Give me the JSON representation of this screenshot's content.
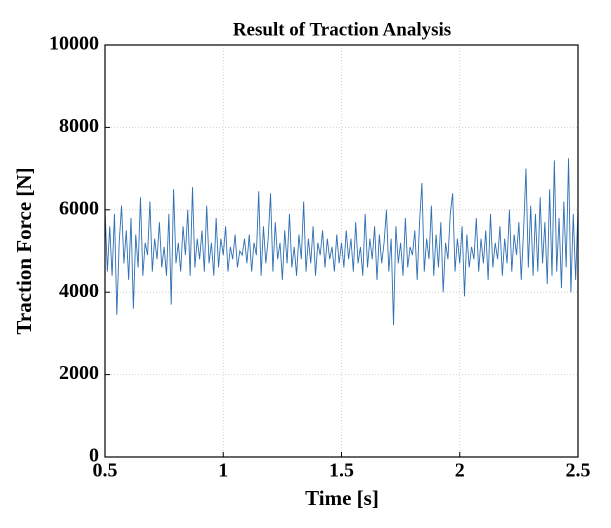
{
  "chart_data": {
    "type": "line",
    "title": "Result of Traction Analysis",
    "x_label": "Time [s]",
    "y_label": "Traction Force [N]",
    "xlim": [
      0.5,
      2.5
    ],
    "xticks": [
      0.5,
      1,
      1.5,
      2,
      2.5
    ],
    "ylim": [
      0,
      10000
    ],
    "yticks": [
      0,
      2000,
      4000,
      6000,
      8000,
      10000
    ],
    "grid": true,
    "x": [
      0.5,
      0.51,
      0.52,
      0.53,
      0.54,
      0.55,
      0.56,
      0.57,
      0.58,
      0.59,
      0.6,
      0.61,
      0.62,
      0.63,
      0.64,
      0.65,
      0.66,
      0.67,
      0.68,
      0.69,
      0.7,
      0.71,
      0.72,
      0.73,
      0.74,
      0.75,
      0.76,
      0.77,
      0.78,
      0.79,
      0.8,
      0.81,
      0.82,
      0.83,
      0.84,
      0.85,
      0.86,
      0.87,
      0.88,
      0.89,
      0.9,
      0.91,
      0.92,
      0.93,
      0.94,
      0.95,
      0.96,
      0.97,
      0.98,
      0.99,
      1,
      1.01,
      1.02,
      1.03,
      1.04,
      1.05,
      1.06,
      1.07,
      1.08,
      1.09,
      1.1,
      1.11,
      1.12,
      1.13,
      1.14,
      1.15,
      1.16,
      1.17,
      1.18,
      1.19,
      1.2,
      1.21,
      1.22,
      1.23,
      1.24,
      1.25,
      1.26,
      1.27,
      1.28,
      1.29,
      1.3,
      1.31,
      1.32,
      1.33,
      1.34,
      1.35,
      1.36,
      1.37,
      1.38,
      1.39,
      1.4,
      1.41,
      1.42,
      1.43,
      1.44,
      1.45,
      1.46,
      1.47,
      1.48,
      1.49,
      1.5,
      1.51,
      1.52,
      1.53,
      1.54,
      1.55,
      1.56,
      1.57,
      1.58,
      1.59,
      1.6,
      1.61,
      1.62,
      1.63,
      1.64,
      1.65,
      1.66,
      1.67,
      1.68,
      1.69,
      1.7,
      1.71,
      1.72,
      1.73,
      1.74,
      1.75,
      1.76,
      1.77,
      1.78,
      1.79,
      1.8,
      1.81,
      1.82,
      1.83,
      1.84,
      1.85,
      1.86,
      1.87,
      1.88,
      1.89,
      1.9,
      1.91,
      1.92,
      1.93,
      1.94,
      1.95,
      1.96,
      1.97,
      1.98,
      1.99,
      2,
      2.01,
      2.02,
      2.03,
      2.04,
      2.05,
      2.06,
      2.07,
      2.08,
      2.09,
      2.1,
      2.11,
      2.12,
      2.13,
      2.14,
      2.15,
      2.16,
      2.17,
      2.18,
      2.19,
      2.2,
      2.21,
      2.22,
      2.23,
      2.24,
      2.25,
      2.26,
      2.27,
      2.28,
      2.29,
      2.3,
      2.31,
      2.32,
      2.33,
      2.34,
      2.35,
      2.36,
      2.37,
      2.38,
      2.39,
      2.4,
      2.41,
      2.42,
      2.43,
      2.44,
      2.45,
      2.46,
      2.47,
      2.48,
      2.49,
      2.5
    ],
    "series": [
      {
        "color": "#2f6fb3",
        "values": [
          6000,
          4500,
          5600,
          4400,
          5900,
          3450,
          5200,
          6100,
          4700,
          5500,
          4300,
          5800,
          3600,
          5400,
          4600,
          6300,
          4400,
          5200,
          4900,
          6200,
          4500,
          5300,
          4800,
          5700,
          4600,
          5100,
          4400,
          5900,
          3700,
          6500,
          4700,
          5200,
          4500,
          5600,
          4900,
          6000,
          4400,
          6550,
          4600,
          5300,
          4800,
          5500,
          4500,
          6100,
          4700,
          5200,
          4400,
          5800,
          4600,
          5300,
          4900,
          5600,
          4500,
          5100,
          4800,
          5400,
          4600,
          5000,
          4900,
          5300,
          4700,
          5400,
          4500,
          5200,
          4900,
          6450,
          4400,
          5600,
          4700,
          5300,
          6400,
          4500,
          5700,
          4800,
          5200,
          4300,
          5500,
          4700,
          5900,
          4600,
          5100,
          4400,
          5400,
          4800,
          6200,
          4500,
          5300,
          4700,
          5600,
          4400,
          5200,
          4900,
          5500,
          4600,
          5300,
          4800,
          5100,
          4500,
          5400,
          4700,
          5200,
          4600,
          5500,
          4800,
          5300,
          4500,
          5700,
          4700,
          5100,
          4400,
          5900,
          4600,
          5300,
          4800,
          5600,
          4300,
          5400,
          4700,
          5200,
          6000,
          4500,
          5300,
          3200,
          5600,
          4700,
          5200,
          4400,
          5800,
          4600,
          5100,
          4900,
          5500,
          4300,
          5700,
          6650,
          4500,
          5300,
          4800,
          6100,
          4400,
          5400,
          4600,
          5700,
          4000,
          5200,
          4800,
          5900,
          6400,
          4500,
          5300,
          4700,
          5600,
          3900,
          5400,
          4600,
          5100,
          4800,
          5800,
          4500,
          5300,
          4700,
          5500,
          4300,
          5900,
          4600,
          5200,
          4800,
          5600,
          4400,
          5300,
          4700,
          6000,
          4500,
          5400,
          4900,
          5700,
          4300,
          5500,
          7000,
          4600,
          6100,
          4400,
          5900,
          4500,
          6300,
          4700,
          5700,
          4200,
          6500,
          4400,
          7200,
          4500,
          5800,
          4100,
          6200,
          4600,
          7250,
          4000,
          5900,
          4300,
          6000
        ]
      }
    ]
  }
}
